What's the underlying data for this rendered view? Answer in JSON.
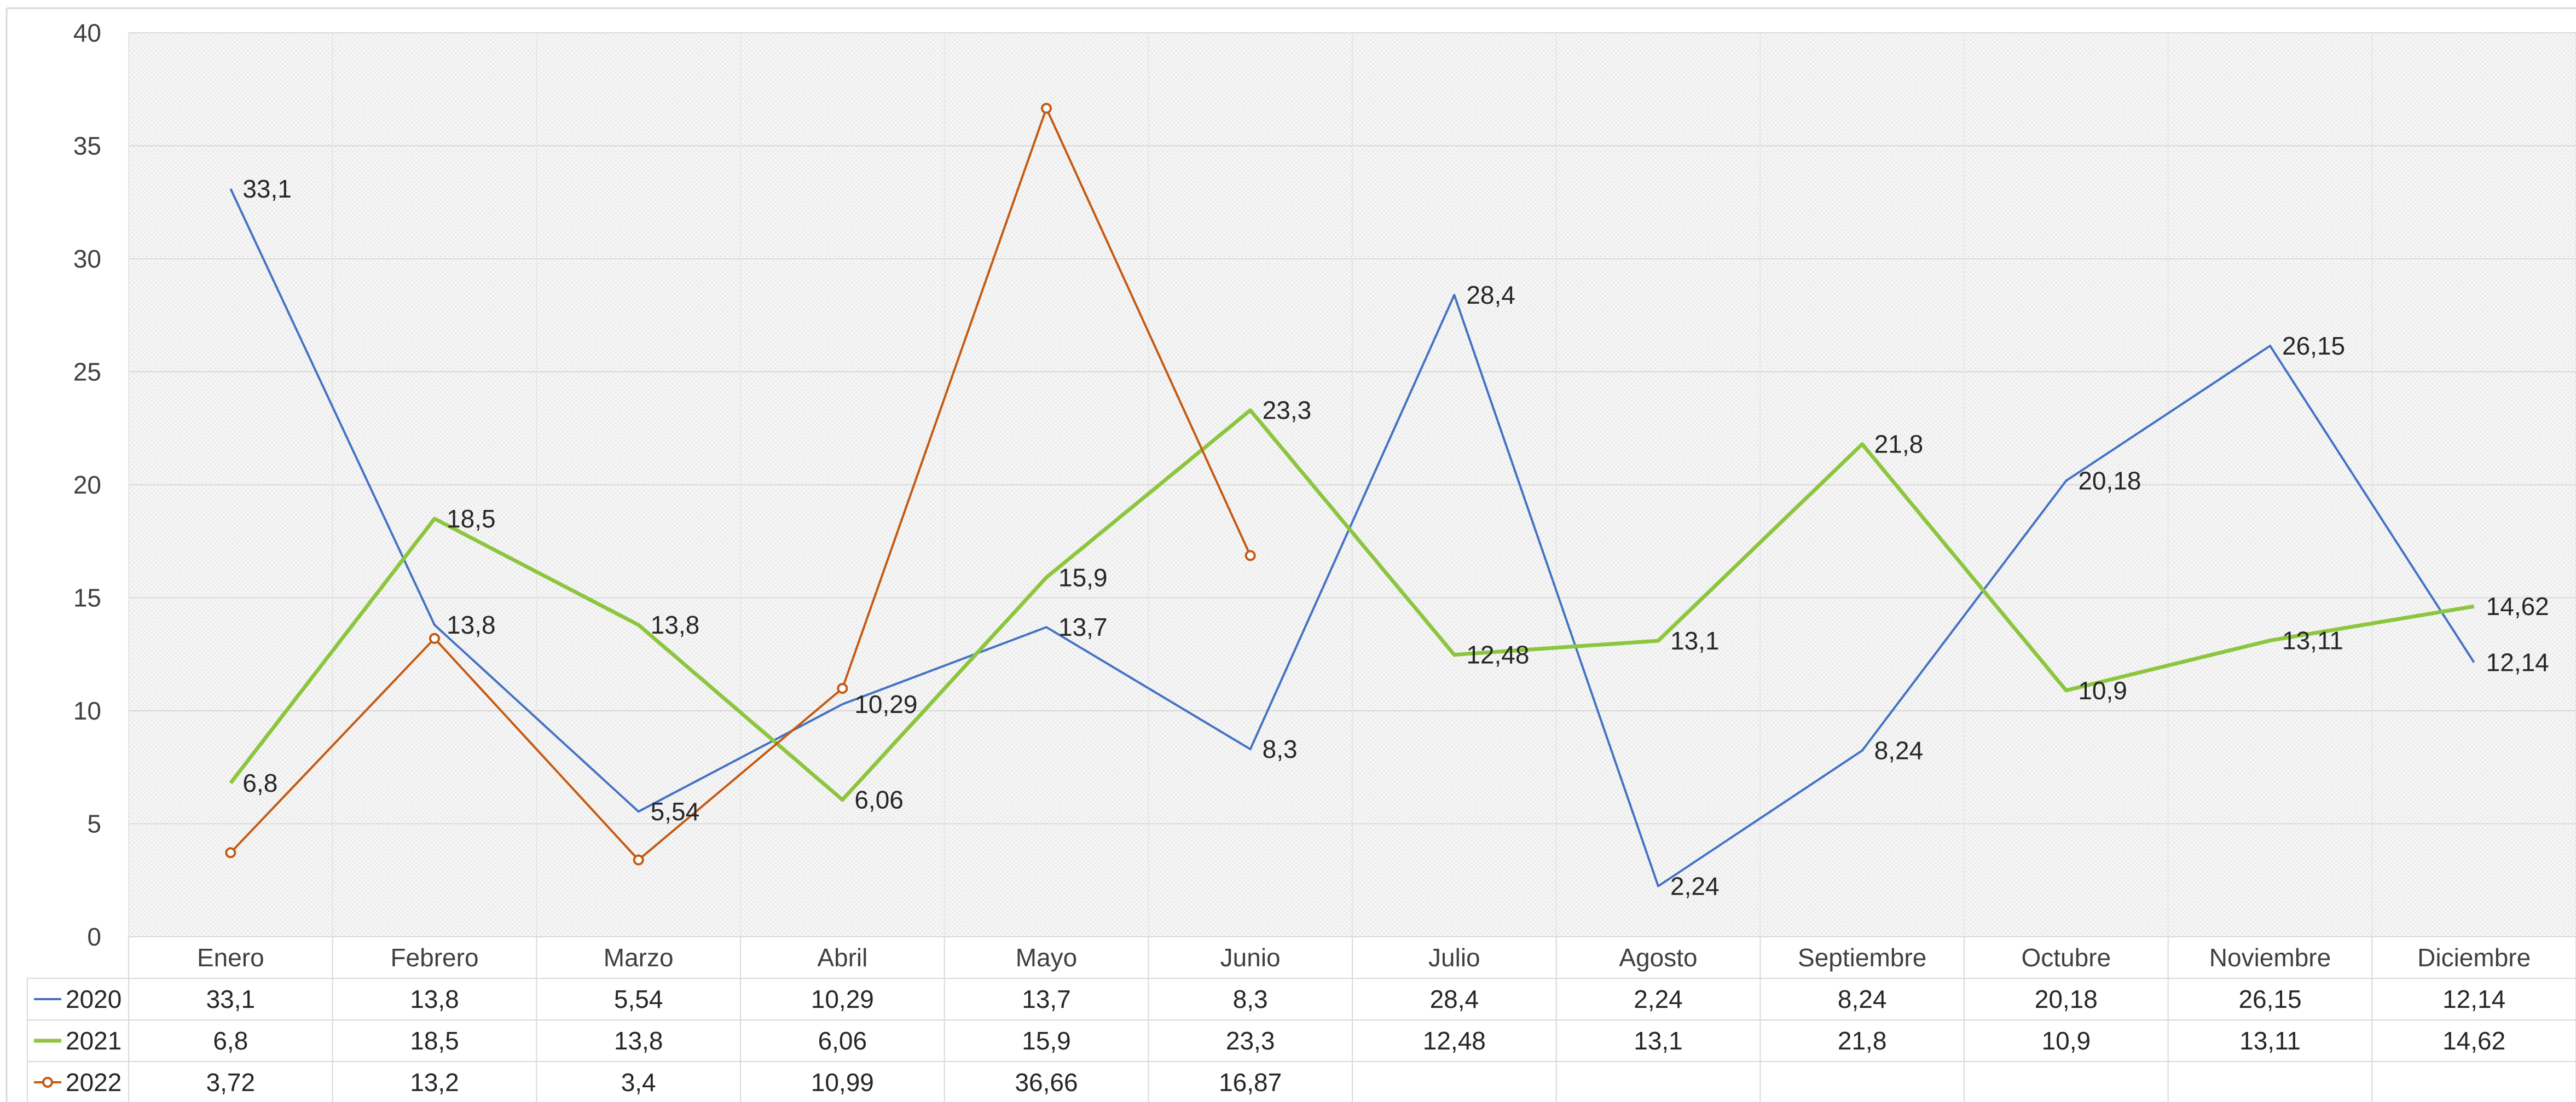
{
  "chart_data": {
    "type": "line",
    "categories": [
      "Enero",
      "Febrero",
      "Marzo",
      "Abril",
      "Mayo",
      "Junio",
      "Julio",
      "Agosto",
      "Septiembre",
      "Octubre",
      "Noviembre",
      "Diciembre"
    ],
    "ylim": [
      0,
      40
    ],
    "y_ticks": [
      0,
      5,
      10,
      15,
      20,
      25,
      30,
      35,
      40
    ],
    "grid": true,
    "legend": "data-table-below",
    "series": [
      {
        "name": "2020",
        "color": "#4472C4",
        "marker": "none",
        "values": [
          33.1,
          13.8,
          5.54,
          10.29,
          13.7,
          8.3,
          28.4,
          2.24,
          8.24,
          20.18,
          26.15,
          12.14
        ],
        "labels": [
          "33,1",
          "13,8",
          "5,54",
          "10,29",
          "13,7",
          "8,3",
          "28,4",
          "2,24",
          "8,24",
          "20,18",
          "26,15",
          "12,14"
        ]
      },
      {
        "name": "2021",
        "color": "#8CC63F",
        "marker": "none",
        "values": [
          6.8,
          18.5,
          13.8,
          6.06,
          15.9,
          23.3,
          12.48,
          13.1,
          21.8,
          10.9,
          13.11,
          14.62
        ],
        "labels": [
          "6,8",
          "18,5",
          "13,8",
          "6,06",
          "15,9",
          "23,3",
          "12,48",
          "13,1",
          "21,8",
          "10,9",
          "13,11",
          "14,62"
        ]
      },
      {
        "name": "2022",
        "color": "#C55A11",
        "marker": "circle",
        "values": [
          3.72,
          13.2,
          3.4,
          10.99,
          36.66,
          16.87,
          null,
          null,
          null,
          null,
          null,
          null
        ],
        "labels": [
          "3,72",
          "13,2",
          "3,4",
          "10,99",
          "36,66",
          "16,87",
          "",
          "",
          "",
          "",
          "",
          ""
        ]
      }
    ]
  }
}
